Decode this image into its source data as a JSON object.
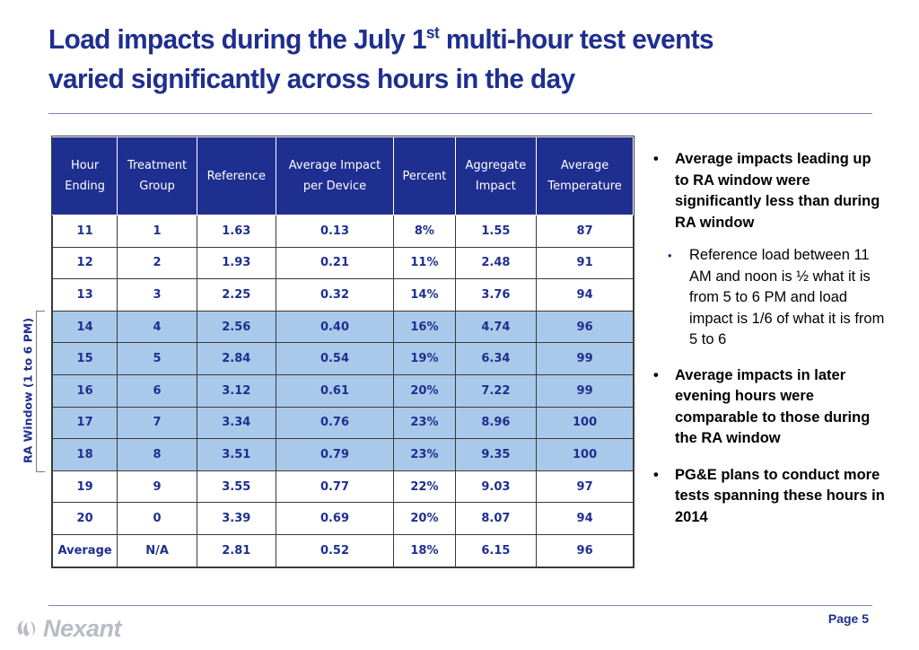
{
  "title": {
    "line1_part1": "Load impacts during the July 1",
    "line1_sup": "st",
    "line1_part2": " multi-hour test events",
    "line2": "varied significantly across hours in the day"
  },
  "table": {
    "headers": [
      [
        "Hour",
        "Ending"
      ],
      [
        "Treatment",
        "Group"
      ],
      [
        "Reference"
      ],
      [
        "Average Impact",
        "per Device"
      ],
      [
        "Percent"
      ],
      [
        "Aggregate",
        "Impact"
      ],
      [
        "Average",
        "Temperature"
      ]
    ],
    "rows": [
      {
        "cells": [
          "11",
          "1",
          "1.63",
          "0.13",
          "8%",
          "1.55",
          "87"
        ],
        "highlight": false
      },
      {
        "cells": [
          "12",
          "2",
          "1.93",
          "0.21",
          "11%",
          "2.48",
          "91"
        ],
        "highlight": false
      },
      {
        "cells": [
          "13",
          "3",
          "2.25",
          "0.32",
          "14%",
          "3.76",
          "94"
        ],
        "highlight": false
      },
      {
        "cells": [
          "14",
          "4",
          "2.56",
          "0.40",
          "16%",
          "4.74",
          "96"
        ],
        "highlight": true
      },
      {
        "cells": [
          "15",
          "5",
          "2.84",
          "0.54",
          "19%",
          "6.34",
          "99"
        ],
        "highlight": true
      },
      {
        "cells": [
          "16",
          "6",
          "3.12",
          "0.61",
          "20%",
          "7.22",
          "99"
        ],
        "highlight": true
      },
      {
        "cells": [
          "17",
          "7",
          "3.34",
          "0.76",
          "23%",
          "8.96",
          "100"
        ],
        "highlight": true
      },
      {
        "cells": [
          "18",
          "8",
          "3.51",
          "0.79",
          "23%",
          "9.35",
          "100"
        ],
        "highlight": true
      },
      {
        "cells": [
          "19",
          "9",
          "3.55",
          "0.77",
          "22%",
          "9.03",
          "97"
        ],
        "highlight": false
      },
      {
        "cells": [
          "20",
          "0",
          "3.39",
          "0.69",
          "20%",
          "8.07",
          "94"
        ],
        "highlight": false
      },
      {
        "cells": [
          "Average",
          "N/A",
          "2.81",
          "0.52",
          "18%",
          "6.15",
          "96"
        ],
        "highlight": false
      }
    ]
  },
  "ra_window_label": "RA Window (1 to 6 PM)",
  "bullets": [
    {
      "level": 1,
      "text": "Average impacts leading up to RA window were significantly less than during RA window"
    },
    {
      "level": 2,
      "text": "Reference load between 11 AM and noon is ½ what it is from 5 to 6 PM and load impact is 1/6 of what it is from 5 to 6"
    },
    {
      "level": 1,
      "text": "Average impacts in later evening hours were comparable to those during the RA window"
    },
    {
      "level": 1,
      "text": "PG&E plans to conduct more tests spanning these hours in 2014"
    }
  ],
  "footer": {
    "logo_text": "Nexant",
    "page_label": "Page 5"
  },
  "colors": {
    "title": "#1f2f8f",
    "header_bg": "#1f2f8f",
    "highlight_row": "#a9c9ea",
    "logo": "#b9bcc7"
  }
}
